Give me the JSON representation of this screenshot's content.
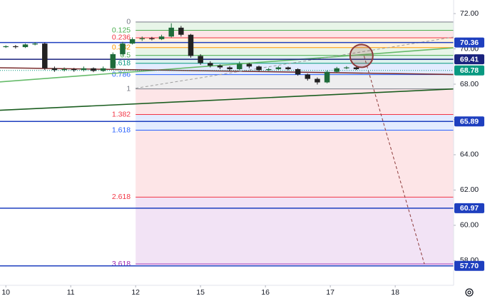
{
  "chart_data": {
    "type": "candlestick",
    "x": [
      0,
      0.15,
      0.3,
      0.45,
      0.6,
      0.75,
      0.9,
      1.05,
      1.2,
      1.35,
      1.5,
      1.65,
      1.8,
      1.95,
      2.1,
      2.25,
      2.4,
      2.55,
      2.7,
      2.85,
      3.0,
      3.15,
      3.3,
      3.45,
      3.6,
      3.75,
      3.9,
      4.05,
      4.2,
      4.35,
      4.5,
      4.65,
      4.8,
      4.95,
      5.1,
      5.25,
      5.4
    ],
    "open": [
      70.1,
      70.15,
      70.1,
      70.25,
      70.3,
      68.9,
      68.8,
      68.85,
      68.8,
      68.9,
      68.75,
      68.9,
      69.7,
      70.3,
      70.55,
      70.6,
      70.55,
      70.7,
      71.2,
      70.8,
      69.6,
      69.2,
      69.05,
      68.95,
      68.85,
      69.15,
      69.0,
      68.8,
      68.85,
      68.95,
      68.85,
      68.55,
      68.3,
      68.1,
      68.7,
      68.9,
      68.95
    ],
    "high": [
      70.2,
      70.22,
      70.3,
      70.38,
      70.35,
      69.0,
      68.95,
      68.92,
      69.0,
      68.95,
      69.0,
      69.8,
      70.4,
      70.65,
      70.7,
      70.68,
      70.8,
      71.45,
      71.3,
      70.85,
      69.7,
      69.3,
      69.12,
      69.02,
      69.28,
      69.2,
      69.05,
      68.92,
      69.02,
      69.0,
      68.9,
      68.6,
      68.38,
      68.78,
      68.98,
      69.02,
      69.0
    ],
    "low": [
      70.05,
      70.02,
      70.05,
      70.2,
      68.8,
      68.7,
      68.72,
      68.7,
      68.72,
      68.68,
      68.7,
      68.85,
      69.6,
      70.25,
      70.45,
      70.48,
      70.5,
      70.65,
      70.7,
      69.5,
      69.1,
      68.95,
      68.85,
      68.75,
      68.8,
      68.9,
      68.72,
      68.75,
      68.8,
      68.78,
      68.48,
      68.2,
      67.98,
      68.05,
      68.65,
      68.85,
      68.8
    ],
    "close": [
      70.15,
      70.1,
      70.25,
      70.3,
      68.9,
      68.8,
      68.85,
      68.8,
      68.9,
      68.75,
      68.9,
      69.7,
      70.3,
      70.55,
      70.6,
      70.55,
      70.7,
      71.2,
      70.8,
      69.6,
      69.2,
      69.05,
      68.95,
      68.85,
      69.15,
      69.0,
      68.8,
      68.85,
      68.95,
      68.85,
      68.55,
      68.3,
      68.1,
      68.7,
      68.9,
      68.95,
      68.85
    ],
    "up_color": "#1e6b3a",
    "down_color": "#222222",
    "xlim": [
      -0.09,
      6.9
    ],
    "ylim": [
      56.6,
      72.77
    ],
    "xticks": [
      {
        "value": 0,
        "label": "10"
      },
      {
        "value": 1,
        "label": "11"
      },
      {
        "value": 2,
        "label": "12"
      },
      {
        "value": 3,
        "label": "15"
      },
      {
        "value": 4,
        "label": "16"
      },
      {
        "value": 5,
        "label": "17"
      },
      {
        "value": 6,
        "label": "18"
      }
    ],
    "yticks": [
      {
        "value": 58,
        "label": "58.00"
      },
      {
        "value": 60,
        "label": "60.00"
      },
      {
        "value": 62,
        "label": "62.00"
      },
      {
        "value": 64,
        "label": "64.00"
      },
      {
        "value": 66,
        "label": "66.00"
      },
      {
        "value": 68,
        "label": "68.00"
      },
      {
        "value": 70,
        "label": "70.00"
      },
      {
        "value": 72,
        "label": "72.00"
      }
    ],
    "fib": {
      "x": [
        2.0,
        6.9
      ],
      "levels": [
        {
          "level": 0,
          "price": 71.52,
          "color": "#787b86"
        },
        {
          "level": 0.125,
          "price": 71.05,
          "color": "#4caf50"
        },
        {
          "level": 0.236,
          "price": 70.63,
          "color": "#f23645"
        },
        {
          "level": 0.382,
          "price": 70.07,
          "color": "#ff9800"
        },
        {
          "level": 0.5,
          "price": 69.63,
          "color": "#4caf50"
        },
        {
          "level": 0.618,
          "price": 69.18,
          "color": "#089981"
        },
        {
          "level": 0.786,
          "price": 68.54,
          "color": "#2962ff"
        },
        {
          "level": 1,
          "price": 67.73,
          "color": "#787b86"
        },
        {
          "level": 1.382,
          "price": 66.28,
          "color": "#f23645"
        },
        {
          "level": 1.618,
          "price": 65.39,
          "color": "#2962ff"
        },
        {
          "level": 2.618,
          "price": 61.6,
          "color": "#f23645"
        },
        {
          "level": 3.618,
          "price": 57.81,
          "color": "#9c27b0"
        }
      ]
    },
    "hlines": [
      {
        "value": 70.36,
        "label": "70.36",
        "color": "#1e3fbf",
        "dotted": false
      },
      {
        "value": 69.41,
        "label": "69.41",
        "color": "#1a237e",
        "dotted": false
      },
      {
        "value": 68.78,
        "label": "68.78",
        "color": "#089981",
        "dotted": true
      },
      {
        "value": 65.89,
        "label": "65.89",
        "color": "#1e3fbf",
        "dotted": false
      },
      {
        "value": 60.97,
        "label": "60.97",
        "color": "#1e3fbf",
        "dotted": false
      },
      {
        "value": 57.7,
        "label": "57.70",
        "color": "#1e3fbf",
        "dotted": false
      }
    ],
    "trendlines": [
      {
        "x": [
          -0.09,
          6.9
        ],
        "y": [
          68.13,
          70.06
        ],
        "color": "#66bb6a",
        "dashed": false
      },
      {
        "x": [
          -0.09,
          6.9
        ],
        "y": [
          66.52,
          67.73
        ],
        "color": "#1b5e20",
        "dashed": false
      },
      {
        "x": [
          -0.09,
          6.9
        ],
        "y": [
          68.93,
          68.55
        ],
        "color": "#7b2e2e",
        "dashed": false
      },
      {
        "x": [
          2.0,
          6.9
        ],
        "y": [
          67.77,
          70.67
        ],
        "color": "#9e9e9e",
        "dashed": true
      },
      {
        "x": [
          5.52,
          6.45
        ],
        "y": [
          69.6,
          57.8
        ],
        "color": "#8d3b3b",
        "dashed": true
      }
    ],
    "circle": {
      "x": [
        5.48
      ],
      "y": [
        69.6
      ],
      "color": "#8d3b3b"
    }
  }
}
